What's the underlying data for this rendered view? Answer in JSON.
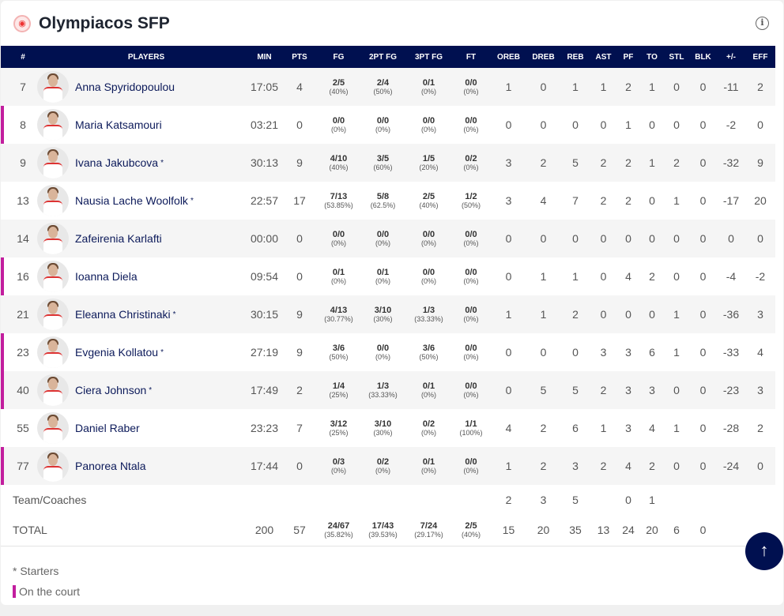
{
  "header": {
    "title": "Olympiacos SFP",
    "info_icon": "info-icon",
    "logo": "team-logo"
  },
  "columns": [
    "#",
    "PLAYERS",
    "MIN",
    "PTS",
    "FG",
    "2PT FG",
    "3PT FG",
    "FT",
    "OREB",
    "DREB",
    "REB",
    "AST",
    "PF",
    "TO",
    "STL",
    "BLK",
    "+/-",
    "EFF"
  ],
  "players": [
    {
      "no": "7",
      "name": "Anna Spyridopoulou",
      "starter": false,
      "on_court": false,
      "min": "17:05",
      "pts": "4",
      "fg": [
        "2/5",
        "(40%)"
      ],
      "fg2": [
        "2/4",
        "(50%)"
      ],
      "fg3": [
        "0/1",
        "(0%)"
      ],
      "ft": [
        "0/0",
        "(0%)"
      ],
      "stats": [
        "1",
        "0",
        "1",
        "1",
        "2",
        "1",
        "0",
        "0",
        "-11",
        "2"
      ]
    },
    {
      "no": "8",
      "name": "Maria Katsamouri",
      "starter": false,
      "on_court": true,
      "min": "03:21",
      "pts": "0",
      "fg": [
        "0/0",
        "(0%)"
      ],
      "fg2": [
        "0/0",
        "(0%)"
      ],
      "fg3": [
        "0/0",
        "(0%)"
      ],
      "ft": [
        "0/0",
        "(0%)"
      ],
      "stats": [
        "0",
        "0",
        "0",
        "0",
        "1",
        "0",
        "0",
        "0",
        "-2",
        "0"
      ]
    },
    {
      "no": "9",
      "name": "Ivana Jakubcova",
      "starter": true,
      "on_court": false,
      "min": "30:13",
      "pts": "9",
      "fg": [
        "4/10",
        "(40%)"
      ],
      "fg2": [
        "3/5",
        "(60%)"
      ],
      "fg3": [
        "1/5",
        "(20%)"
      ],
      "ft": [
        "0/2",
        "(0%)"
      ],
      "stats": [
        "3",
        "2",
        "5",
        "2",
        "2",
        "1",
        "2",
        "0",
        "-32",
        "9"
      ]
    },
    {
      "no": "13",
      "name": "Nausia Lache Woolfolk",
      "starter": true,
      "on_court": false,
      "min": "22:57",
      "pts": "17",
      "fg": [
        "7/13",
        "(53.85%)"
      ],
      "fg2": [
        "5/8",
        "(62.5%)"
      ],
      "fg3": [
        "2/5",
        "(40%)"
      ],
      "ft": [
        "1/2",
        "(50%)"
      ],
      "stats": [
        "3",
        "4",
        "7",
        "2",
        "2",
        "0",
        "1",
        "0",
        "-17",
        "20"
      ]
    },
    {
      "no": "14",
      "name": "Zafeirenia Karlafti",
      "starter": false,
      "on_court": false,
      "min": "00:00",
      "pts": "0",
      "fg": [
        "0/0",
        "(0%)"
      ],
      "fg2": [
        "0/0",
        "(0%)"
      ],
      "fg3": [
        "0/0",
        "(0%)"
      ],
      "ft": [
        "0/0",
        "(0%)"
      ],
      "stats": [
        "0",
        "0",
        "0",
        "0",
        "0",
        "0",
        "0",
        "0",
        "0",
        "0"
      ]
    },
    {
      "no": "16",
      "name": "Ioanna Diela",
      "starter": false,
      "on_court": true,
      "min": "09:54",
      "pts": "0",
      "fg": [
        "0/1",
        "(0%)"
      ],
      "fg2": [
        "0/1",
        "(0%)"
      ],
      "fg3": [
        "0/0",
        "(0%)"
      ],
      "ft": [
        "0/0",
        "(0%)"
      ],
      "stats": [
        "0",
        "1",
        "1",
        "0",
        "4",
        "2",
        "0",
        "0",
        "-4",
        "-2"
      ]
    },
    {
      "no": "21",
      "name": "Eleanna Christinaki",
      "starter": true,
      "on_court": false,
      "min": "30:15",
      "pts": "9",
      "fg": [
        "4/13",
        "(30.77%)"
      ],
      "fg2": [
        "3/10",
        "(30%)"
      ],
      "fg3": [
        "1/3",
        "(33.33%)"
      ],
      "ft": [
        "0/0",
        "(0%)"
      ],
      "stats": [
        "1",
        "1",
        "2",
        "0",
        "0",
        "0",
        "1",
        "0",
        "-36",
        "3"
      ]
    },
    {
      "no": "23",
      "name": "Evgenia Kollatou",
      "starter": true,
      "on_court": true,
      "min": "27:19",
      "pts": "9",
      "fg": [
        "3/6",
        "(50%)"
      ],
      "fg2": [
        "0/0",
        "(0%)"
      ],
      "fg3": [
        "3/6",
        "(50%)"
      ],
      "ft": [
        "0/0",
        "(0%)"
      ],
      "stats": [
        "0",
        "0",
        "0",
        "3",
        "3",
        "6",
        "1",
        "0",
        "-33",
        "4"
      ]
    },
    {
      "no": "40",
      "name": "Ciera Johnson",
      "starter": true,
      "on_court": true,
      "min": "17:49",
      "pts": "2",
      "fg": [
        "1/4",
        "(25%)"
      ],
      "fg2": [
        "1/3",
        "(33.33%)"
      ],
      "fg3": [
        "0/1",
        "(0%)"
      ],
      "ft": [
        "0/0",
        "(0%)"
      ],
      "stats": [
        "0",
        "5",
        "5",
        "2",
        "3",
        "3",
        "0",
        "0",
        "-23",
        "3"
      ]
    },
    {
      "no": "55",
      "name": "Daniel Raber",
      "starter": false,
      "on_court": false,
      "min": "23:23",
      "pts": "7",
      "fg": [
        "3/12",
        "(25%)"
      ],
      "fg2": [
        "3/10",
        "(30%)"
      ],
      "fg3": [
        "0/2",
        "(0%)"
      ],
      "ft": [
        "1/1",
        "(100%)"
      ],
      "stats": [
        "4",
        "2",
        "6",
        "1",
        "3",
        "4",
        "1",
        "0",
        "-28",
        "2"
      ]
    },
    {
      "no": "77",
      "name": "Panorea Ntala",
      "starter": false,
      "on_court": true,
      "min": "17:44",
      "pts": "0",
      "fg": [
        "0/3",
        "(0%)"
      ],
      "fg2": [
        "0/2",
        "(0%)"
      ],
      "fg3": [
        "0/1",
        "(0%)"
      ],
      "ft": [
        "0/0",
        "(0%)"
      ],
      "stats": [
        "1",
        "2",
        "3",
        "2",
        "4",
        "2",
        "0",
        "0",
        "-24",
        "0"
      ]
    }
  ],
  "team": {
    "label": "Team/Coaches",
    "stats": [
      "2",
      "3",
      "5",
      "",
      "0",
      "1",
      "",
      "",
      "",
      ""
    ]
  },
  "total": {
    "label": "TOTAL",
    "min": "200",
    "pts": "57",
    "fg": [
      "24/67",
      "(35.82%)"
    ],
    "fg2": [
      "17/43",
      "(39.53%)"
    ],
    "fg3": [
      "7/24",
      "(29.17%)"
    ],
    "ft": [
      "2/5",
      "(40%)"
    ],
    "stats": [
      "15",
      "20",
      "35",
      "13",
      "24",
      "20",
      "6",
      "0",
      "",
      ""
    ]
  },
  "legend": {
    "starters": "* Starters",
    "on_court": "On the court",
    "star": "*"
  },
  "colors": {
    "header_bg": "#001050",
    "on_court": "#c21e9e"
  }
}
